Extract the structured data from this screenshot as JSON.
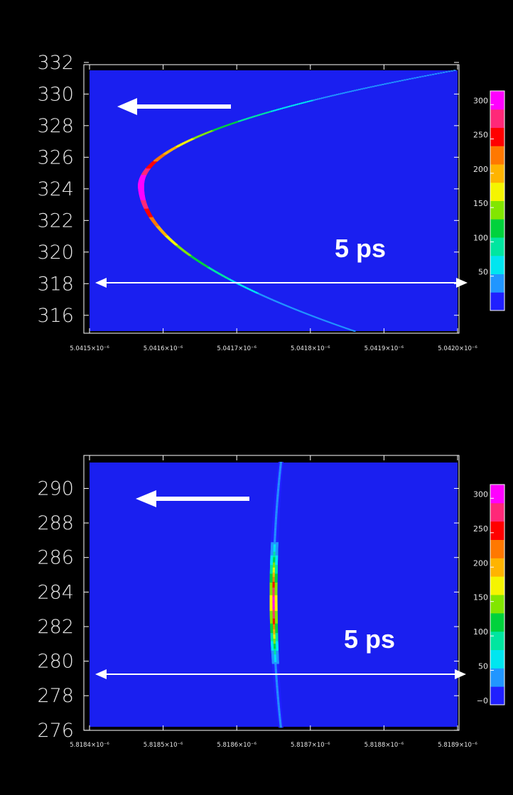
{
  "chart_data": [
    {
      "type": "heatmap",
      "title": "",
      "xlabel": "",
      "ylabel": "",
      "x_ticks": [
        "5.0415×10⁻⁶",
        "5.0416×10⁻⁶",
        "5.0417×10⁻⁶",
        "5.0418×10⁻⁶",
        "5.0419×10⁻⁶",
        "5.0420×10⁻⁶"
      ],
      "xlim": [
        5.0415e-06,
        5.042e-06
      ],
      "y_ticks": [
        316,
        318,
        320,
        322,
        324,
        326,
        328,
        330,
        332
      ],
      "ylim": [
        315,
        331.5
      ],
      "colorbar_ticks": [
        "300",
        "250",
        "200",
        "150",
        "100",
        "50"
      ],
      "colorbar_range": [
        0,
        320
      ],
      "trace": {
        "shape": "parabola",
        "vertex_x": 5.04157e-06,
        "vertex_y": 324.2,
        "upper_end": {
          "x": 5.041996e-06,
          "y": 331.5
        },
        "lower_end": {
          "x": 5.04186e-06,
          "y": 315.0
        },
        "peak_value": 300
      },
      "annotation": "5  ps",
      "arrow_direction": "left",
      "scale_bar": "double-headed"
    },
    {
      "type": "heatmap",
      "title": "",
      "xlabel": "",
      "ylabel": "",
      "x_ticks": [
        "5.8184×10⁻⁶",
        "5.8185×10⁻⁶",
        "5.8186×10⁻⁶",
        "5.8187×10⁻⁶",
        "5.8188×10⁻⁶",
        "5.8189×10⁻⁶"
      ],
      "xlim": [
        5.8184e-06,
        5.8189e-06
      ],
      "y_ticks": [
        276,
        278,
        280,
        282,
        284,
        286,
        288,
        290
      ],
      "ylim": [
        276.2,
        291.5
      ],
      "colorbar_ticks": [
        "300",
        "250",
        "200",
        "150",
        "100",
        "50",
        "0"
      ],
      "colorbar_range": [
        0,
        320
      ],
      "trace": {
        "shape": "near-vertical line",
        "x_top": 5.81866e-06,
        "x_middle": 5.81865e-06,
        "x_bottom": 5.81866e-06,
        "peak_value": 300
      },
      "annotation": "5  ps",
      "arrow_direction": "left",
      "scale_bar": "double-headed"
    }
  ],
  "colors": {
    "background": "#000000",
    "plot_field": "#1a1ff0",
    "annotation": "#ffffff",
    "colormap": [
      "#2020ff",
      "#2196ff",
      "#00e6f0",
      "#00e6a0",
      "#00d23c",
      "#82e600",
      "#f5f500",
      "#ffb400",
      "#ff7800",
      "#ff0000",
      "#ff2878",
      "#ff00ff"
    ]
  }
}
